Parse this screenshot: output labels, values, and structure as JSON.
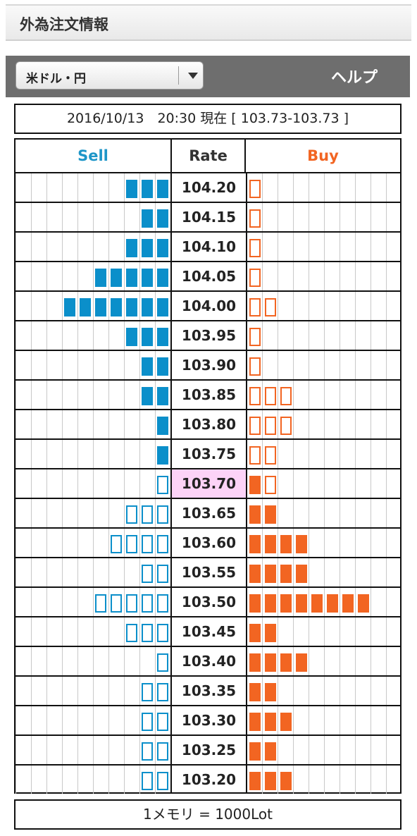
{
  "header": {
    "title": "外為注文情報"
  },
  "toolbar": {
    "currency_pair": "米ドル・円",
    "help_label": "ヘルプ"
  },
  "status": {
    "text": "2016/10/13　20:30 現在 [ 103.73-103.73 ]"
  },
  "book": {
    "sell_label": "Sell",
    "rate_label": "Rate",
    "buy_label": "Buy",
    "current_rate": "103.70",
    "rows": [
      {
        "rate": "104.20",
        "sell": 3,
        "sell_style": "filled",
        "buy": 1,
        "buy_style": "outline"
      },
      {
        "rate": "104.15",
        "sell": 2,
        "sell_style": "filled",
        "buy": 1,
        "buy_style": "outline"
      },
      {
        "rate": "104.10",
        "sell": 3,
        "sell_style": "filled",
        "buy": 1,
        "buy_style": "outline"
      },
      {
        "rate": "104.05",
        "sell": 5,
        "sell_style": "filled",
        "buy": 1,
        "buy_style": "outline"
      },
      {
        "rate": "104.00",
        "sell": 7,
        "sell_style": "filled",
        "buy": 2,
        "buy_style": "outline"
      },
      {
        "rate": "103.95",
        "sell": 3,
        "sell_style": "filled",
        "buy": 1,
        "buy_style": "outline"
      },
      {
        "rate": "103.90",
        "sell": 2,
        "sell_style": "filled",
        "buy": 1,
        "buy_style": "outline"
      },
      {
        "rate": "103.85",
        "sell": 2,
        "sell_style": "filled",
        "buy": 3,
        "buy_style": "outline"
      },
      {
        "rate": "103.80",
        "sell": 1,
        "sell_style": "filled",
        "buy": 3,
        "buy_style": "outline"
      },
      {
        "rate": "103.75",
        "sell": 1,
        "sell_style": "filled",
        "buy": 2,
        "buy_style": "outline"
      },
      {
        "rate": "103.70",
        "sell": 1,
        "sell_style": "outline",
        "buy": 2,
        "buy_style": "mixed"
      },
      {
        "rate": "103.65",
        "sell": 3,
        "sell_style": "outline",
        "buy": 2,
        "buy_style": "filled"
      },
      {
        "rate": "103.60",
        "sell": 4,
        "sell_style": "outline",
        "buy": 4,
        "buy_style": "filled"
      },
      {
        "rate": "103.55",
        "sell": 2,
        "sell_style": "outline",
        "buy": 4,
        "buy_style": "filled"
      },
      {
        "rate": "103.50",
        "sell": 5,
        "sell_style": "outline",
        "buy": 8,
        "buy_style": "filled"
      },
      {
        "rate": "103.45",
        "sell": 3,
        "sell_style": "outline",
        "buy": 2,
        "buy_style": "filled"
      },
      {
        "rate": "103.40",
        "sell": 1,
        "sell_style": "outline",
        "buy": 4,
        "buy_style": "filled"
      },
      {
        "rate": "103.35",
        "sell": 2,
        "sell_style": "outline",
        "buy": 2,
        "buy_style": "filled"
      },
      {
        "rate": "103.30",
        "sell": 2,
        "sell_style": "outline",
        "buy": 3,
        "buy_style": "filled"
      },
      {
        "rate": "103.25",
        "sell": 2,
        "sell_style": "outline",
        "buy": 2,
        "buy_style": "filled"
      },
      {
        "rate": "103.20",
        "sell": 2,
        "sell_style": "outline",
        "buy": 3,
        "buy_style": "filled"
      }
    ]
  },
  "footer": {
    "note": "1メモリ = 1000Lot"
  },
  "colors": {
    "sell": "#0b8fca",
    "buy": "#f26522",
    "current_highlight": "#fcd3f7"
  }
}
